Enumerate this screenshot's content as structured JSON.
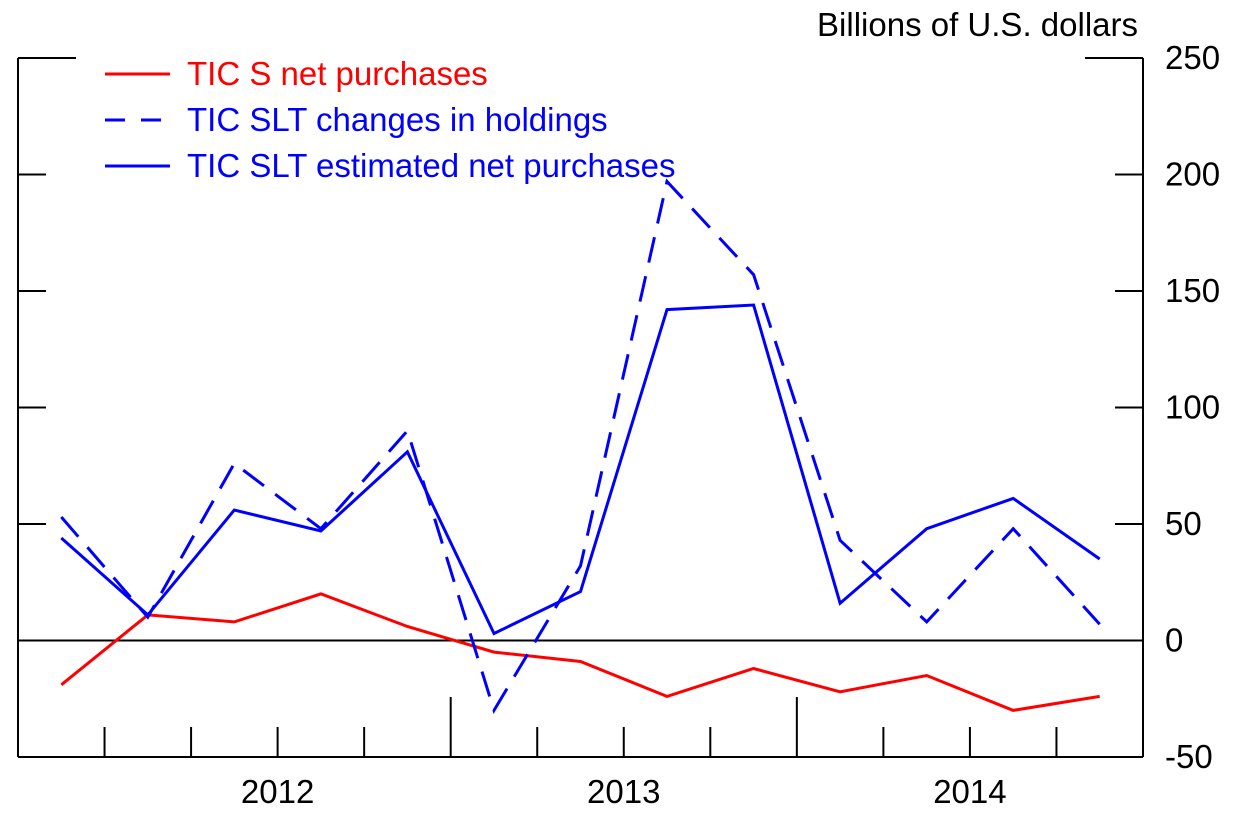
{
  "chart_data": {
    "type": "line",
    "unit_label": "Billions of U.S. dollars",
    "y_axis_side": "right",
    "ylim": [
      -50,
      250
    ],
    "yticks": [
      -50,
      0,
      50,
      100,
      150,
      200,
      250
    ],
    "x_labels": [
      {
        "text": "2012",
        "x": 2012.5
      },
      {
        "text": "2013",
        "x": 2013.5
      },
      {
        "text": "2014",
        "x": 2014.5
      }
    ],
    "xlim": [
      2011.75,
      2015.0
    ],
    "x_minor_ticks": [
      2012.0,
      2012.25,
      2012.5,
      2012.75,
      2013.25,
      2013.5,
      2013.75,
      2014.25,
      2014.5,
      2014.75
    ],
    "x_major_ticks": [
      2013.0,
      2014.0
    ],
    "zero_line": true,
    "legend_position": "top-left",
    "x": [
      2011.875,
      2012.125,
      2012.375,
      2012.625,
      2012.875,
      2013.125,
      2013.375,
      2013.625,
      2013.875,
      2014.125,
      2014.375,
      2014.625,
      2014.875
    ],
    "series": [
      {
        "name": "TIC S net purchases",
        "color": "#ff0000",
        "dash": "solid",
        "values": [
          -19,
          11,
          8,
          20,
          6,
          -5,
          -9,
          -24,
          -12,
          -22,
          -15,
          -30,
          -24
        ]
      },
      {
        "name": "TIC SLT changes in holdings",
        "color": "#0000ff",
        "dash": "dashed",
        "values": [
          53,
          10,
          76,
          48,
          90,
          -30,
          32,
          197,
          157,
          43,
          8,
          48,
          7
        ]
      },
      {
        "name": "TIC SLT estimated net purchases",
        "color": "#0000ff",
        "dash": "solid",
        "values": [
          44,
          11,
          56,
          47,
          81,
          3,
          21,
          142,
          144,
          16,
          48,
          61,
          35
        ]
      }
    ]
  }
}
